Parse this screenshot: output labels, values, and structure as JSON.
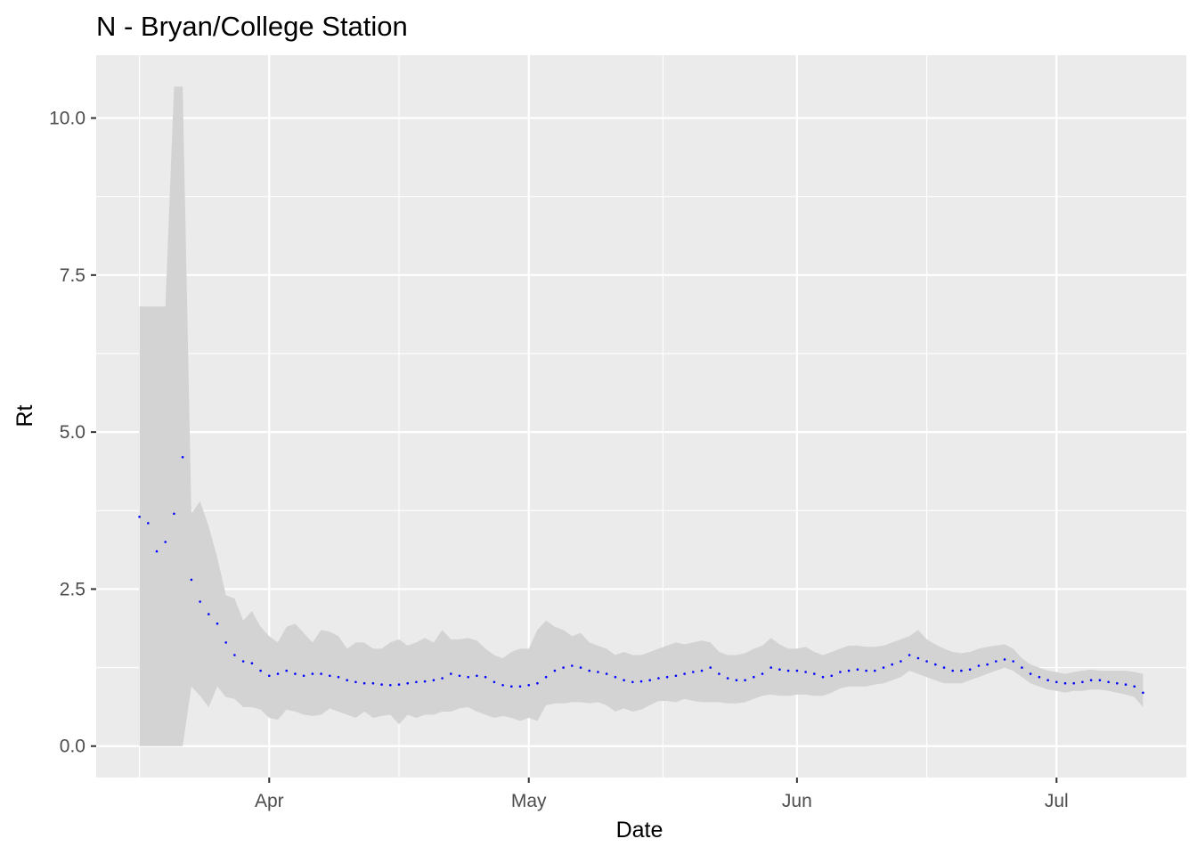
{
  "chart_data": {
    "type": "line",
    "title": "N - Bryan/College Station",
    "xlabel": "Date",
    "ylabel": "Rt",
    "x_ticks": [
      {
        "date": "2020-04-01",
        "label": "Apr"
      },
      {
        "date": "2020-05-01",
        "label": "May"
      },
      {
        "date": "2020-06-01",
        "label": "Jun"
      },
      {
        "date": "2020-07-01",
        "label": "Jul"
      }
    ],
    "y_ticks": [
      {
        "value": 0.0,
        "label": "0.0"
      },
      {
        "value": 2.5,
        "label": "2.5"
      },
      {
        "value": 5.0,
        "label": "5.0"
      },
      {
        "value": 7.5,
        "label": "7.5"
      },
      {
        "value": 10.0,
        "label": "10.0"
      }
    ],
    "xlim": [
      "2020-03-12",
      "2020-07-16"
    ],
    "ylim": [
      -0.5,
      11.0
    ],
    "grid": true,
    "legend": "none",
    "colors": {
      "panel": "#ebebeb",
      "grid": "#ffffff",
      "ribbon": "#d3d3d3",
      "points": "#0000ff"
    },
    "series": [
      {
        "start_date": "2020-03-17",
        "rt": [
          3.65,
          3.55,
          3.1,
          3.25,
          3.7,
          4.6,
          2.65,
          2.3,
          2.1,
          1.95,
          1.65,
          1.45,
          1.35,
          1.32,
          1.2,
          1.12,
          1.15,
          1.2,
          1.15,
          1.12,
          1.15,
          1.15,
          1.12,
          1.1,
          1.05,
          1.02,
          1.0,
          1.0,
          0.98,
          0.97,
          0.98,
          1.0,
          1.02,
          1.03,
          1.05,
          1.08,
          1.15,
          1.12,
          1.1,
          1.12,
          1.1,
          1.02,
          0.97,
          0.95,
          0.95,
          0.97,
          1.0,
          1.1,
          1.2,
          1.25,
          1.28,
          1.25,
          1.2,
          1.18,
          1.15,
          1.1,
          1.05,
          1.02,
          1.03,
          1.05,
          1.08,
          1.1,
          1.12,
          1.15,
          1.18,
          1.2,
          1.25,
          1.15,
          1.08,
          1.05,
          1.05,
          1.1,
          1.15,
          1.25,
          1.22,
          1.2,
          1.2,
          1.18,
          1.15,
          1.1,
          1.12,
          1.18,
          1.2,
          1.22,
          1.2,
          1.2,
          1.25,
          1.3,
          1.35,
          1.45,
          1.4,
          1.35,
          1.3,
          1.25,
          1.2,
          1.2,
          1.22,
          1.28,
          1.3,
          1.35,
          1.38,
          1.35,
          1.25,
          1.15,
          1.1,
          1.05,
          1.02,
          1.0,
          1.0,
          1.02,
          1.05,
          1.05,
          1.02,
          1.0,
          0.98,
          0.95,
          0.85
        ],
        "lower": [
          0,
          0,
          0,
          0,
          0,
          0,
          0.95,
          0.8,
          0.62,
          0.95,
          0.78,
          0.75,
          0.62,
          0.62,
          0.58,
          0.45,
          0.42,
          0.58,
          0.55,
          0.5,
          0.48,
          0.5,
          0.6,
          0.55,
          0.5,
          0.45,
          0.55,
          0.45,
          0.48,
          0.5,
          0.35,
          0.5,
          0.45,
          0.5,
          0.5,
          0.55,
          0.55,
          0.6,
          0.62,
          0.55,
          0.5,
          0.45,
          0.48,
          0.45,
          0.4,
          0.45,
          0.4,
          0.65,
          0.68,
          0.68,
          0.7,
          0.7,
          0.68,
          0.7,
          0.65,
          0.55,
          0.6,
          0.55,
          0.58,
          0.65,
          0.72,
          0.72,
          0.7,
          0.75,
          0.72,
          0.7,
          0.7,
          0.7,
          0.68,
          0.68,
          0.7,
          0.75,
          0.8,
          0.82,
          0.8,
          0.8,
          0.82,
          0.82,
          0.8,
          0.8,
          0.85,
          0.92,
          0.95,
          0.95,
          0.95,
          0.98,
          1.0,
          1.05,
          1.1,
          1.2,
          1.15,
          1.1,
          1.05,
          1.0,
          1.0,
          1.0,
          1.05,
          1.1,
          1.15,
          1.2,
          1.25,
          1.2,
          1.1,
          1.0,
          0.95,
          0.9,
          0.88,
          0.85,
          0.88,
          0.88,
          0.9,
          0.9,
          0.88,
          0.85,
          0.82,
          0.78,
          0.62
        ],
        "upper": [
          7.0,
          7.0,
          7.0,
          7.0,
          10.5,
          10.5,
          3.7,
          3.9,
          3.5,
          3.0,
          2.4,
          2.35,
          2.0,
          2.15,
          1.9,
          1.75,
          1.65,
          1.9,
          1.95,
          1.8,
          1.65,
          1.85,
          1.82,
          1.75,
          1.55,
          1.65,
          1.65,
          1.55,
          1.55,
          1.65,
          1.7,
          1.6,
          1.65,
          1.72,
          1.65,
          1.85,
          1.7,
          1.7,
          1.72,
          1.68,
          1.55,
          1.45,
          1.4,
          1.5,
          1.55,
          1.55,
          1.85,
          2.0,
          1.9,
          1.85,
          1.75,
          1.8,
          1.65,
          1.6,
          1.55,
          1.45,
          1.5,
          1.45,
          1.45,
          1.5,
          1.55,
          1.6,
          1.65,
          1.62,
          1.65,
          1.68,
          1.65,
          1.5,
          1.45,
          1.45,
          1.48,
          1.55,
          1.6,
          1.72,
          1.62,
          1.55,
          1.55,
          1.58,
          1.5,
          1.45,
          1.5,
          1.55,
          1.6,
          1.6,
          1.58,
          1.58,
          1.6,
          1.65,
          1.7,
          1.75,
          1.85,
          1.7,
          1.62,
          1.55,
          1.5,
          1.48,
          1.5,
          1.55,
          1.58,
          1.6,
          1.62,
          1.55,
          1.4,
          1.3,
          1.25,
          1.2,
          1.18,
          1.15,
          1.18,
          1.2,
          1.22,
          1.2,
          1.2,
          1.2,
          1.2,
          1.18,
          1.15
        ]
      }
    ]
  }
}
